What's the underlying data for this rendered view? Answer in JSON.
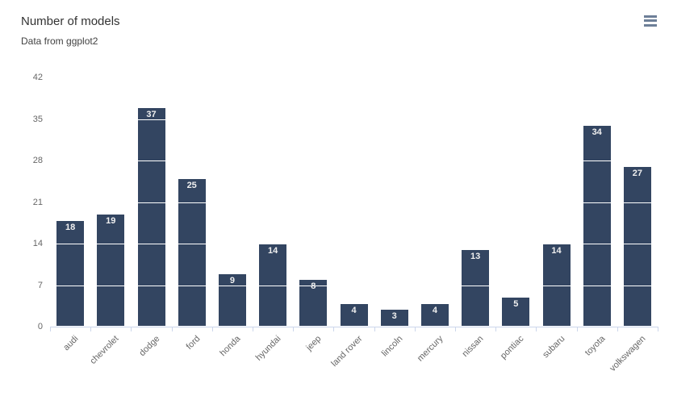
{
  "header": {
    "menu_icon": "hamburger"
  },
  "colors": {
    "background": "#ffffff",
    "bar": "#334561",
    "bar_border": "#ffffff",
    "grid_over_bar": "#ffffff",
    "axis_line": "#ccd6eb",
    "tick": "#ccd6eb",
    "title_text": "#333333",
    "subtitle_text": "#424242",
    "axis_label_text": "#666666",
    "data_label_text": "#f0f0f0",
    "menu_icon": "#6d7f98"
  },
  "chart_data": {
    "type": "bar",
    "title": "Number of models",
    "subtitle": "Data from ggplot2",
    "categories": [
      "audi",
      "chevrolet",
      "dodge",
      "ford",
      "honda",
      "hyundai",
      "jeep",
      "land rover",
      "lincoln",
      "mercury",
      "nissan",
      "pontiac",
      "subaru",
      "toyota",
      "volkswagen"
    ],
    "values": [
      18,
      19,
      37,
      25,
      9,
      14,
      8,
      4,
      3,
      4,
      13,
      5,
      14,
      34,
      27
    ],
    "xlabel": "",
    "ylabel": "",
    "ylim": [
      0,
      42
    ],
    "yticks": [
      0,
      7,
      14,
      21,
      28,
      35,
      42
    ],
    "grid": "horizontal white lines drawn over bars only",
    "legend": "none",
    "data_labels": "value inside top of each bar, white bold",
    "x_label_rotation": -45
  }
}
